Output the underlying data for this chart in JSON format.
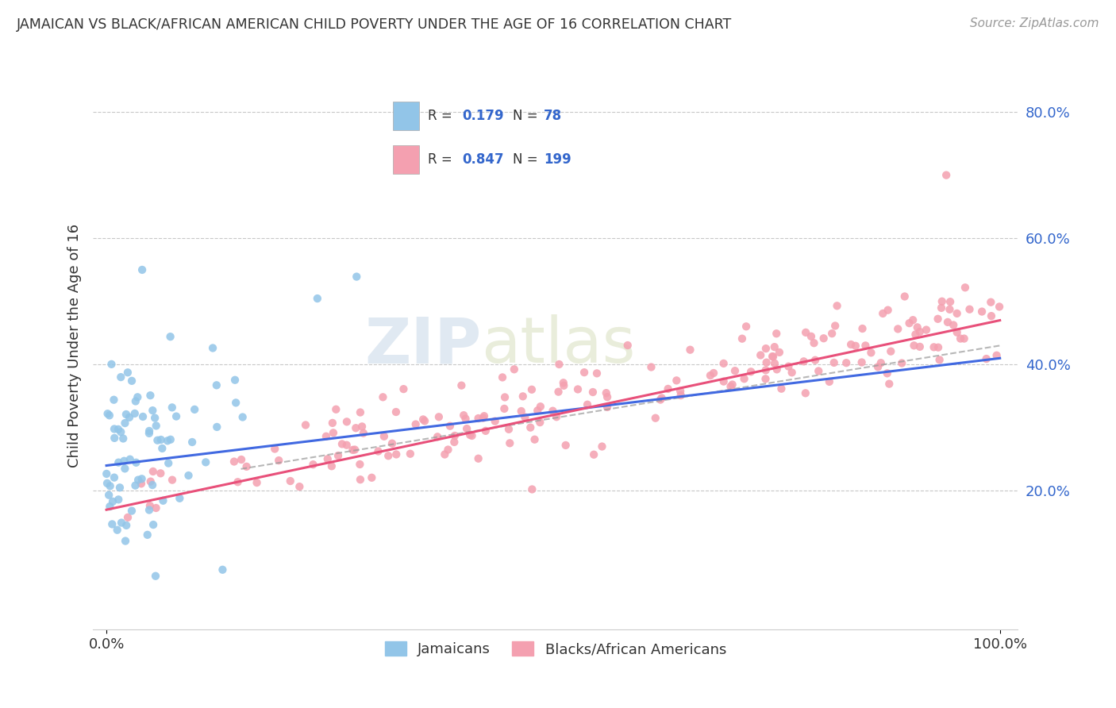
{
  "title": "JAMAICAN VS BLACK/AFRICAN AMERICAN CHILD POVERTY UNDER THE AGE OF 16 CORRELATION CHART",
  "source": "Source: ZipAtlas.com",
  "ylabel": "Child Poverty Under the Age of 16",
  "watermark_zip": "ZIP",
  "watermark_atlas": "atlas",
  "jamaican_color": "#92C5E8",
  "black_color": "#F4A0B0",
  "jamaican_line_color": "#4169E1",
  "black_line_color": "#E8507A",
  "dashed_line_color": "#999999",
  "blue_text_color": "#3366CC",
  "title_color": "#333333",
  "grid_color": "#C8C8C8",
  "background_color": "#FFFFFF",
  "r_jamaican": 0.179,
  "n_jamaican": 78,
  "r_black": 0.847,
  "n_black": 199
}
